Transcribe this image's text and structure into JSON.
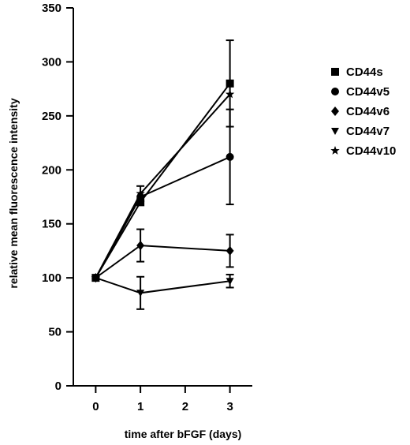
{
  "chart_data": {
    "type": "line",
    "title": "",
    "xlabel": "time after bFGF (days)",
    "ylabel": "relative mean fluorescence intensity",
    "xlim": [
      -0.5,
      3.5
    ],
    "ylim": [
      0,
      350
    ],
    "x_ticks": [
      0,
      1,
      2,
      3
    ],
    "y_ticks": [
      0,
      50,
      100,
      150,
      200,
      250,
      300,
      350
    ],
    "grid": false,
    "legend_position": "right",
    "series": [
      {
        "name": "CD44s",
        "marker": "square",
        "x": [
          0,
          1,
          3
        ],
        "y": [
          100,
          170,
          280
        ],
        "err": [
          0,
          0,
          40
        ]
      },
      {
        "name": "CD44v5",
        "marker": "circle",
        "x": [
          0,
          1,
          3
        ],
        "y": [
          100,
          175,
          212
        ],
        "err": [
          0,
          0,
          44
        ]
      },
      {
        "name": "CD44v6",
        "marker": "diamond",
        "x": [
          0,
          1,
          3
        ],
        "y": [
          100,
          130,
          125
        ],
        "err": [
          0,
          15,
          15
        ]
      },
      {
        "name": "CD44v7",
        "marker": "triangle-down",
        "x": [
          0,
          1,
          3
        ],
        "y": [
          100,
          86,
          97
        ],
        "err": [
          0,
          15,
          6
        ]
      },
      {
        "name": "CD44v10",
        "marker": "star",
        "x": [
          0,
          1,
          3
        ],
        "y": [
          100,
          178,
          270
        ],
        "err": [
          0,
          7,
          0
        ]
      }
    ]
  }
}
